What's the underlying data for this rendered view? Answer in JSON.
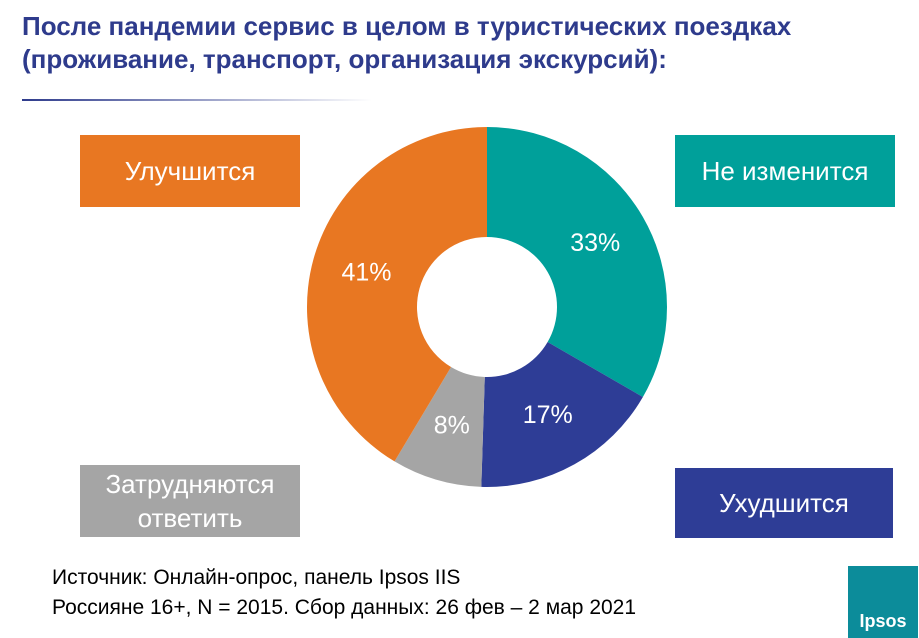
{
  "title": "После пандемии сервис в целом в туристических поездках (проживание, транспорт, организация экскурсий):",
  "chart_data": {
    "type": "pie",
    "categories": [
      "Не изменится",
      "Ухудшится",
      "Затрудняются ответить",
      "Улучшится"
    ],
    "values": [
      33,
      17,
      8,
      41
    ],
    "value_labels": [
      "33%",
      "17%",
      "8%",
      "41%"
    ],
    "colors": [
      "#00a09a",
      "#2e3d96",
      "#a5a5a5",
      "#e87722"
    ],
    "donut": true
  },
  "source": [
    "Источник: Онлайн-опрос, панель Ipsos IIS",
    "Россияне 16+, N = 2015. Сбор данных: 26 фев – 2 мар 2021"
  ],
  "logo": "Ipsos"
}
